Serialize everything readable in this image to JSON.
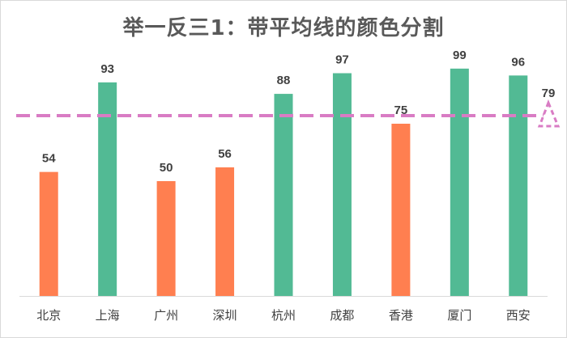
{
  "chart_data": {
    "type": "bar",
    "title": "举一反三1：带平均线的颜色分割",
    "categories": [
      "北京",
      "上海",
      "广州",
      "深圳",
      "杭州",
      "成都",
      "香港",
      "厦门",
      "西安"
    ],
    "values": [
      54,
      93,
      50,
      56,
      88,
      97,
      75,
      99,
      96
    ],
    "average_line": {
      "value": 79,
      "label": "79",
      "style": "dashed",
      "color": "#D97CC4"
    },
    "colors": {
      "below_average": "#FF7F50",
      "above_average": "#52BA94",
      "axis": "#D9D9D9"
    },
    "ylim": [
      0,
      120
    ],
    "grid": false,
    "legend": "none"
  }
}
